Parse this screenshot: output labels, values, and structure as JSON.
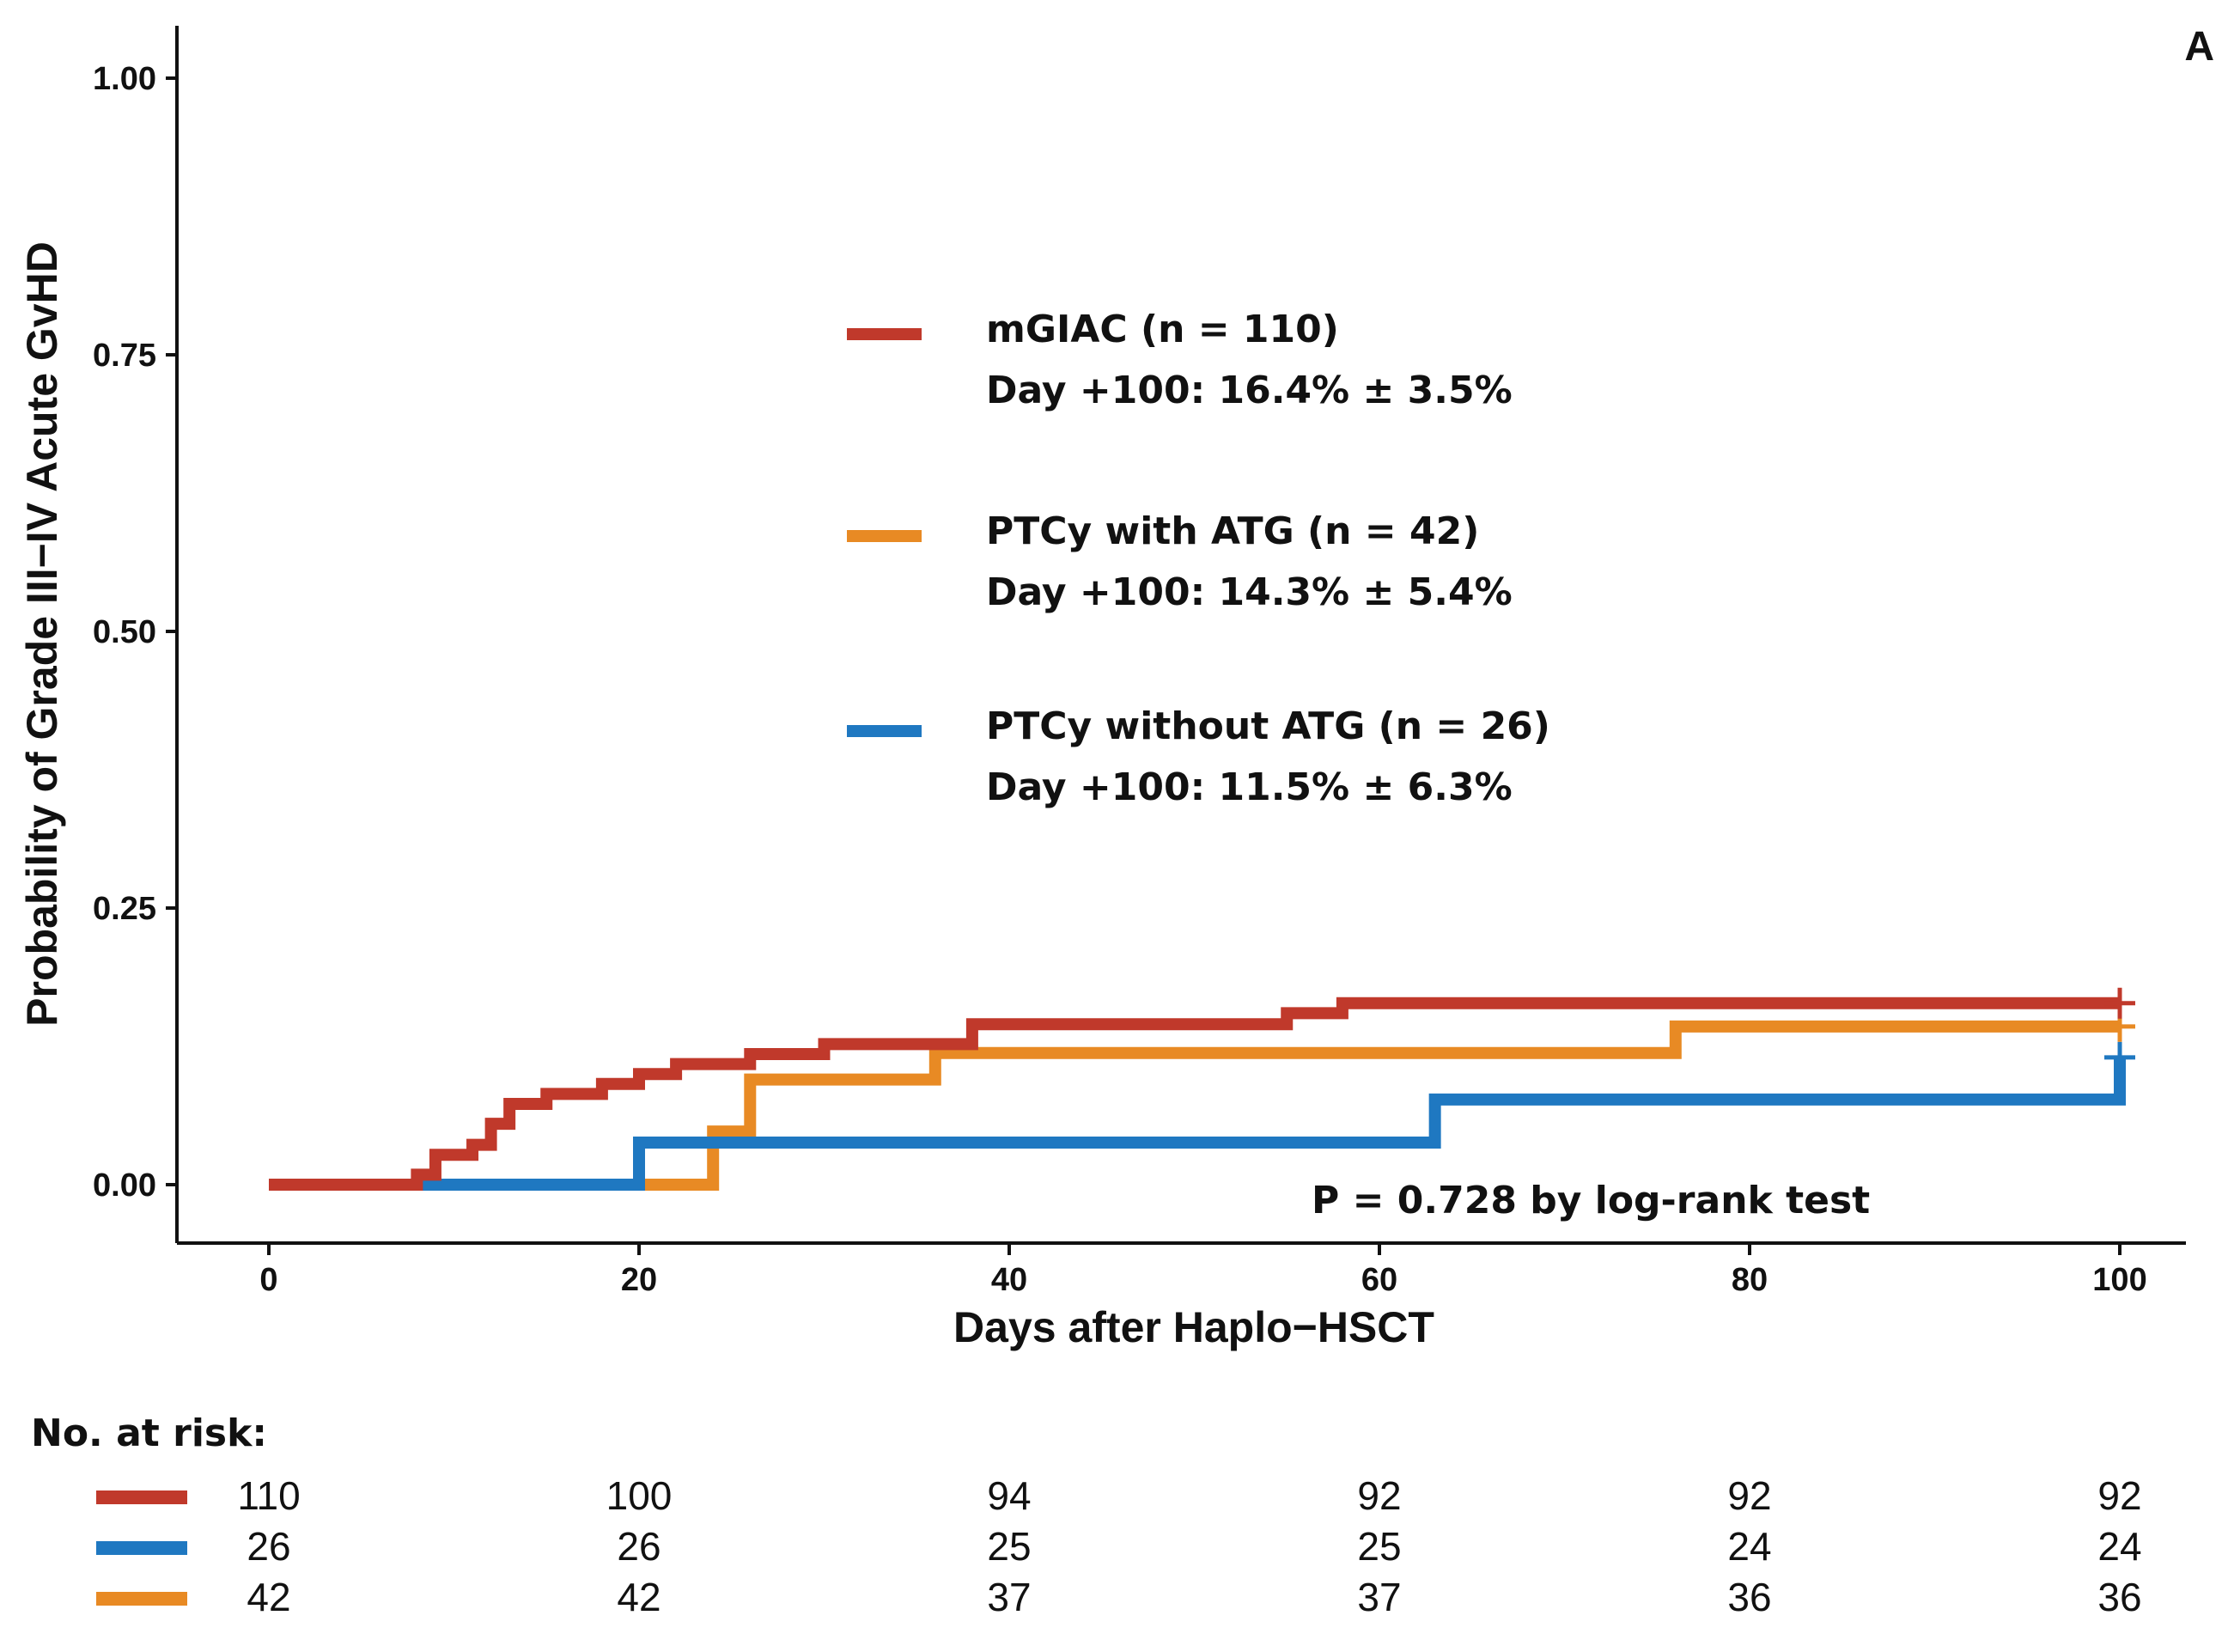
{
  "chart_data": {
    "type": "line",
    "subtype": "step-cumulative-incidence",
    "panel_label": "A",
    "xlabel": "Days after Haplo−HSCT",
    "ylabel": "Probability of Grade III−IV Acute GvHD",
    "xlim": [
      0,
      100
    ],
    "ylim": [
      0,
      1
    ],
    "x_ticks": [
      0,
      20,
      40,
      60,
      80,
      100
    ],
    "x_tick_labels": [
      "0",
      "20",
      "40",
      "60",
      "80",
      "100"
    ],
    "y_ticks": [
      0,
      0.25,
      0.5,
      0.75,
      1.0
    ],
    "y_tick_labels": [
      "0.00",
      "0.25",
      "0.50",
      "0.75",
      "1.00"
    ],
    "grid": false,
    "legend_position": "center",
    "annotation": "P = 0.728 by log-rank test",
    "series": [
      {
        "name": "mGIAC (n = 110)",
        "legend_line1": "mGIAC (n = 110)",
        "legend_line2": "Day +100: 16.4% ± 3.5%",
        "color": "#c0392b",
        "x": [
          0,
          8,
          9,
          11,
          12,
          13,
          15,
          18,
          20,
          22,
          26,
          30,
          38,
          55,
          58,
          100
        ],
        "y": [
          0,
          0.009,
          0.027,
          0.036,
          0.055,
          0.073,
          0.082,
          0.091,
          0.1,
          0.109,
          0.118,
          0.127,
          0.145,
          0.155,
          0.164,
          0.164
        ],
        "censor_x": [
          100
        ],
        "censor_y": [
          0.164
        ]
      },
      {
        "name": "PTCy with ATG (n = 42)",
        "legend_line1": "PTCy with ATG (n = 42)",
        "legend_line2": "Day +100: 14.3% ± 5.4%",
        "color": "#e88a24",
        "x": [
          0,
          24,
          26,
          36,
          76,
          100
        ],
        "y": [
          0,
          0.048,
          0.095,
          0.119,
          0.143,
          0.143
        ],
        "censor_x": [
          100
        ],
        "censor_y": [
          0.143
        ]
      },
      {
        "name": "PTCy without ATG (n = 26)",
        "legend_line1": "PTCy without ATG (n = 26)",
        "legend_line2": "Day +100: 11.5% ± 6.3%",
        "color": "#1f78c1",
        "x": [
          0,
          20,
          63,
          100
        ],
        "y": [
          0,
          0.038,
          0.077,
          0.115
        ],
        "censor_x": [
          100
        ],
        "censor_y": [
          0.115
        ]
      }
    ],
    "risk_table": {
      "title": "No. at risk:",
      "times": [
        0,
        20,
        40,
        60,
        80,
        100
      ],
      "rows": [
        {
          "color": "#c0392b",
          "values": [
            "110",
            "100",
            "94",
            "92",
            "92",
            "92"
          ]
        },
        {
          "color": "#1f78c1",
          "values": [
            "26",
            "26",
            "25",
            "25",
            "24",
            "24"
          ]
        },
        {
          "color": "#e88a24",
          "values": [
            "42",
            "42",
            "37",
            "37",
            "36",
            "36"
          ]
        }
      ]
    }
  }
}
